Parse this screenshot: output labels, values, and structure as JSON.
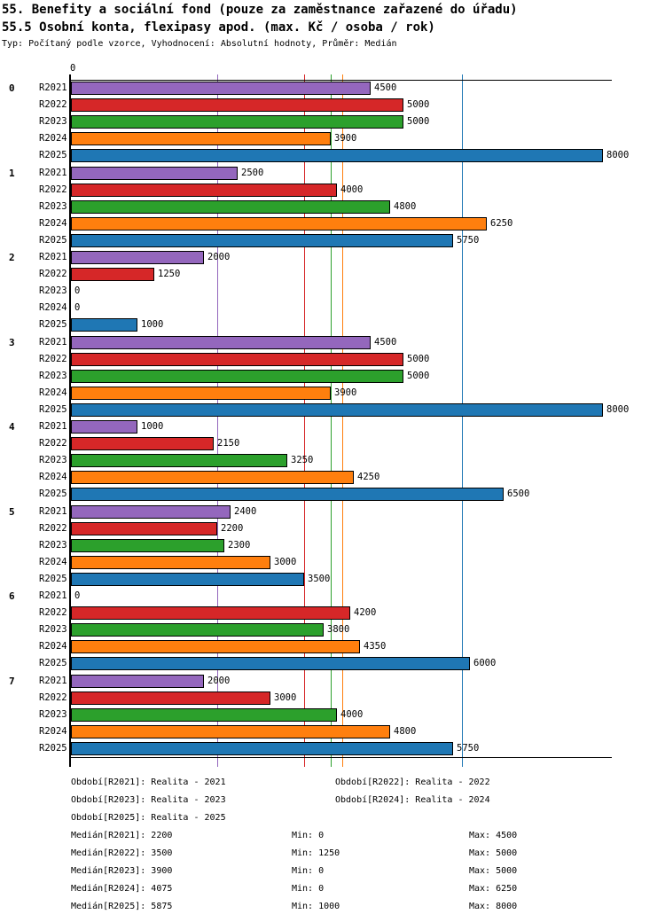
{
  "title1": "55. Benefity a sociální fond (pouze za zaměstnance zařazené do úřadu)",
  "title2": "55.5 Osobní konta, flexipasy apod. (max. Kč / osoba / rok)",
  "subtitle": "Typ: Počítaný podle vzorce, Vyhodnocení: Absolutní hodnoty, Průměr: Medián",
  "chart_data": {
    "type": "bar",
    "orientation": "horizontal",
    "x_zero_label": "0",
    "xlim": [
      0,
      8100
    ],
    "grid": "median-lines-only",
    "groups": [
      "0",
      "1",
      "2",
      "3",
      "4",
      "5",
      "6",
      "7"
    ],
    "series": [
      {
        "name": "R2021",
        "color": "#9467bd",
        "median": 2200,
        "min": 0,
        "max": 4500,
        "values": [
          4500,
          2500,
          2000,
          4500,
          1000,
          2400,
          0,
          2000
        ]
      },
      {
        "name": "R2022",
        "color": "#d62728",
        "median": 3500,
        "min": 1250,
        "max": 5000,
        "values": [
          5000,
          4000,
          1250,
          5000,
          2150,
          2200,
          4200,
          3000
        ]
      },
      {
        "name": "R2023",
        "color": "#2ca02c",
        "median": 3900,
        "min": 0,
        "max": 5000,
        "values": [
          5000,
          4800,
          0,
          5000,
          3250,
          2300,
          3800,
          4000
        ]
      },
      {
        "name": "R2024",
        "color": "#ff7f0e",
        "median": 4075,
        "min": 0,
        "max": 6250,
        "values": [
          3900,
          6250,
          0,
          3900,
          4250,
          3000,
          4350,
          4800
        ]
      },
      {
        "name": "R2025",
        "color": "#1f77b4",
        "median": 5875,
        "min": 1000,
        "max": 8000,
        "values": [
          8000,
          5750,
          1000,
          8000,
          6500,
          3500,
          6000,
          5750
        ]
      }
    ]
  },
  "legend": {
    "rows": [
      [
        "Období[R2021]: Realita - 2021",
        "Období[R2022]: Realita - 2022"
      ],
      [
        "Období[R2023]: Realita - 2023",
        "Období[R2024]: Realita - 2024"
      ],
      [
        "Období[R2025]: Realita - 2025",
        ""
      ]
    ]
  },
  "stats": {
    "rows": [
      {
        "median": "Medián[R2021]: 2200",
        "min": "Min: 0",
        "max": "Max: 4500"
      },
      {
        "median": "Medián[R2022]: 3500",
        "min": "Min: 1250",
        "max": "Max: 5000"
      },
      {
        "median": "Medián[R2023]: 3900",
        "min": "Min: 0",
        "max": "Max: 5000"
      },
      {
        "median": "Medián[R2024]: 4075",
        "min": "Min: 0",
        "max": "Max: 6250"
      },
      {
        "median": "Medián[R2025]: 5875",
        "min": "Min: 1000",
        "max": "Max: 8000"
      }
    ]
  }
}
